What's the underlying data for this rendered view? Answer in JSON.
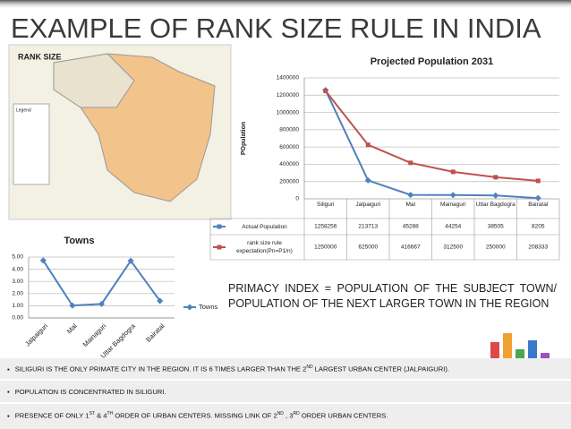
{
  "header": {
    "title": "EXAMPLE OF RANK SIZE RULE IN INDIA"
  },
  "map": {
    "title": "RANK SIZE",
    "legend": "Legend"
  },
  "chart_data": [
    {
      "type": "line",
      "title": "Projected Population 2031",
      "y_label": "POpulation",
      "categories": [
        "Siliguri",
        "Jalpaiguri",
        "Mal",
        "Mainaguri",
        "Uttar Bagdogra",
        "Bairatal"
      ],
      "series": [
        {
          "name": "Actual Population",
          "color": "#4f81bd",
          "values": [
            1258256,
            213713,
            45288,
            44254,
            38505,
            8205
          ]
        },
        {
          "name": "rank size rule expectation(Pn=P1/n)",
          "color": "#c0504d",
          "values": [
            1250000,
            625000,
            416667,
            312500,
            250000,
            208333
          ]
        }
      ],
      "ylim": [
        0,
        1400000
      ],
      "yticks": [
        0,
        200000,
        400000,
        600000,
        800000,
        1000000,
        1200000,
        1400000
      ],
      "grid": true,
      "data_table": true
    },
    {
      "type": "line",
      "title": "Towns",
      "categories": [
        "Jalpaiguri",
        "Mal",
        "Mainaguri",
        "Uttar Bagdogra",
        "Bairatal"
      ],
      "series": [
        {
          "name": "Towns",
          "color": "#4f81bd",
          "values": [
            4.72,
            1.02,
            1.15,
            4.69,
            1.4
          ]
        }
      ],
      "ylim": [
        0,
        5
      ],
      "yticks": [
        {
          "value": 0,
          "label": "0.00"
        },
        {
          "value": 1,
          "label": "1.00"
        },
        {
          "value": 2,
          "label": "2.00"
        },
        {
          "value": 3,
          "label": "3.00"
        },
        {
          "value": 4,
          "label": "4.00"
        },
        {
          "value": 5,
          "label": "5.00"
        }
      ],
      "grid": true,
      "legend": "right"
    }
  ],
  "primacy": "PRIMACY INDEX = POPULATION OF THE SUBJECT TOWN/ POPULATION OF THE NEXT LARGER TOWN IN THE REGION",
  "bullets": [
    [
      "SILIGURI IS THE ONLY PRIMATE CITY IN THE REGION. IT IS 6 TIMES LARGER THAN THE 2",
      "ND",
      " LARGEST URBAN CENTER (JALPAIGURI)."
    ],
    [
      "POPULATION IS CONCENTRATED IN SILIGURI."
    ],
    [
      "PRESENCE OF ONLY 1",
      "ST",
      " & 4",
      "TH",
      " ORDER OF URBAN CENTERS. MISSING LINK OF 2",
      "ND",
      " , 3",
      "RD",
      " ORDER URBAN CENTERS."
    ]
  ]
}
